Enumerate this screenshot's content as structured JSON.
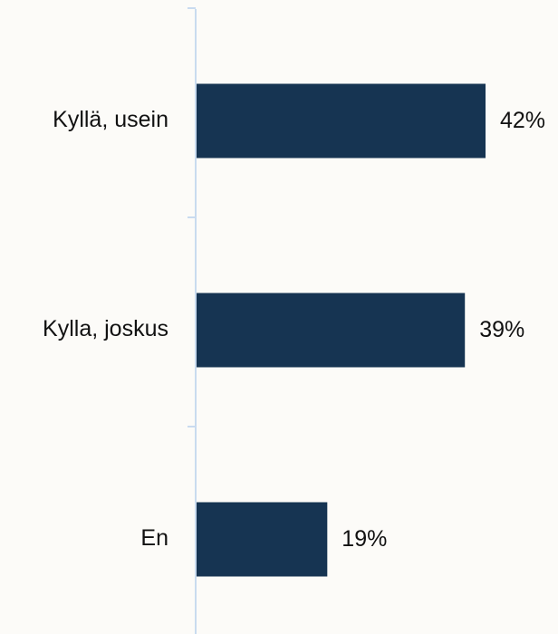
{
  "chart_data": {
    "type": "bar",
    "orientation": "horizontal",
    "categories": [
      "Kyllä, usein",
      "Kylla, joskus",
      "En"
    ],
    "values": [
      42,
      39,
      19
    ],
    "value_labels": [
      "42%",
      "39%",
      "19%"
    ],
    "unit": "%",
    "xlim": [
      0,
      50
    ],
    "grid": false,
    "legend": "none",
    "colors": {
      "bar": "#163452",
      "axis": "#c9dbef",
      "background": "#fcfbf8",
      "text": "#111111"
    }
  }
}
